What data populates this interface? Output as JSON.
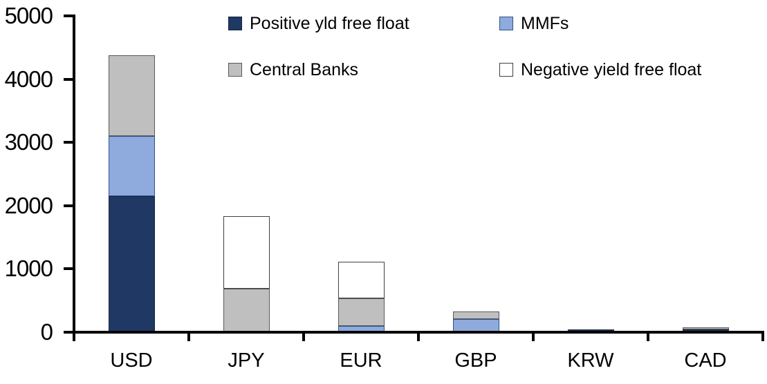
{
  "chart_data": {
    "type": "bar",
    "stacked": true,
    "title": "",
    "xlabel": "",
    "ylabel": "",
    "categories": [
      "USD",
      "JPY",
      "EUR",
      "GBP",
      "KRW",
      "CAD"
    ],
    "series": [
      {
        "name": "Positive yld free float",
        "color": "#1F3864",
        "border_color": "#17243F",
        "values": [
          2150,
          0,
          0,
          0,
          45,
          45
        ]
      },
      {
        "name": "MMFs",
        "color": "#8FAADC",
        "border_color": "#31538F",
        "values": [
          950,
          0,
          100,
          210,
          0,
          0
        ]
      },
      {
        "name": "Central Banks",
        "color": "#BFBFBF",
        "border_color": "#595959",
        "values": [
          1280,
          690,
          440,
          120,
          0,
          35
        ]
      },
      {
        "name": "Negative yield free float",
        "color": "#FFFFFF",
        "border_color": "#404040",
        "values": [
          0,
          1150,
          575,
          0,
          0,
          0
        ]
      }
    ],
    "ylim": [
      0,
      5000
    ],
    "yticks": [
      0,
      1000,
      2000,
      3000,
      4000,
      5000
    ],
    "grid": false,
    "legend_position": "top"
  }
}
